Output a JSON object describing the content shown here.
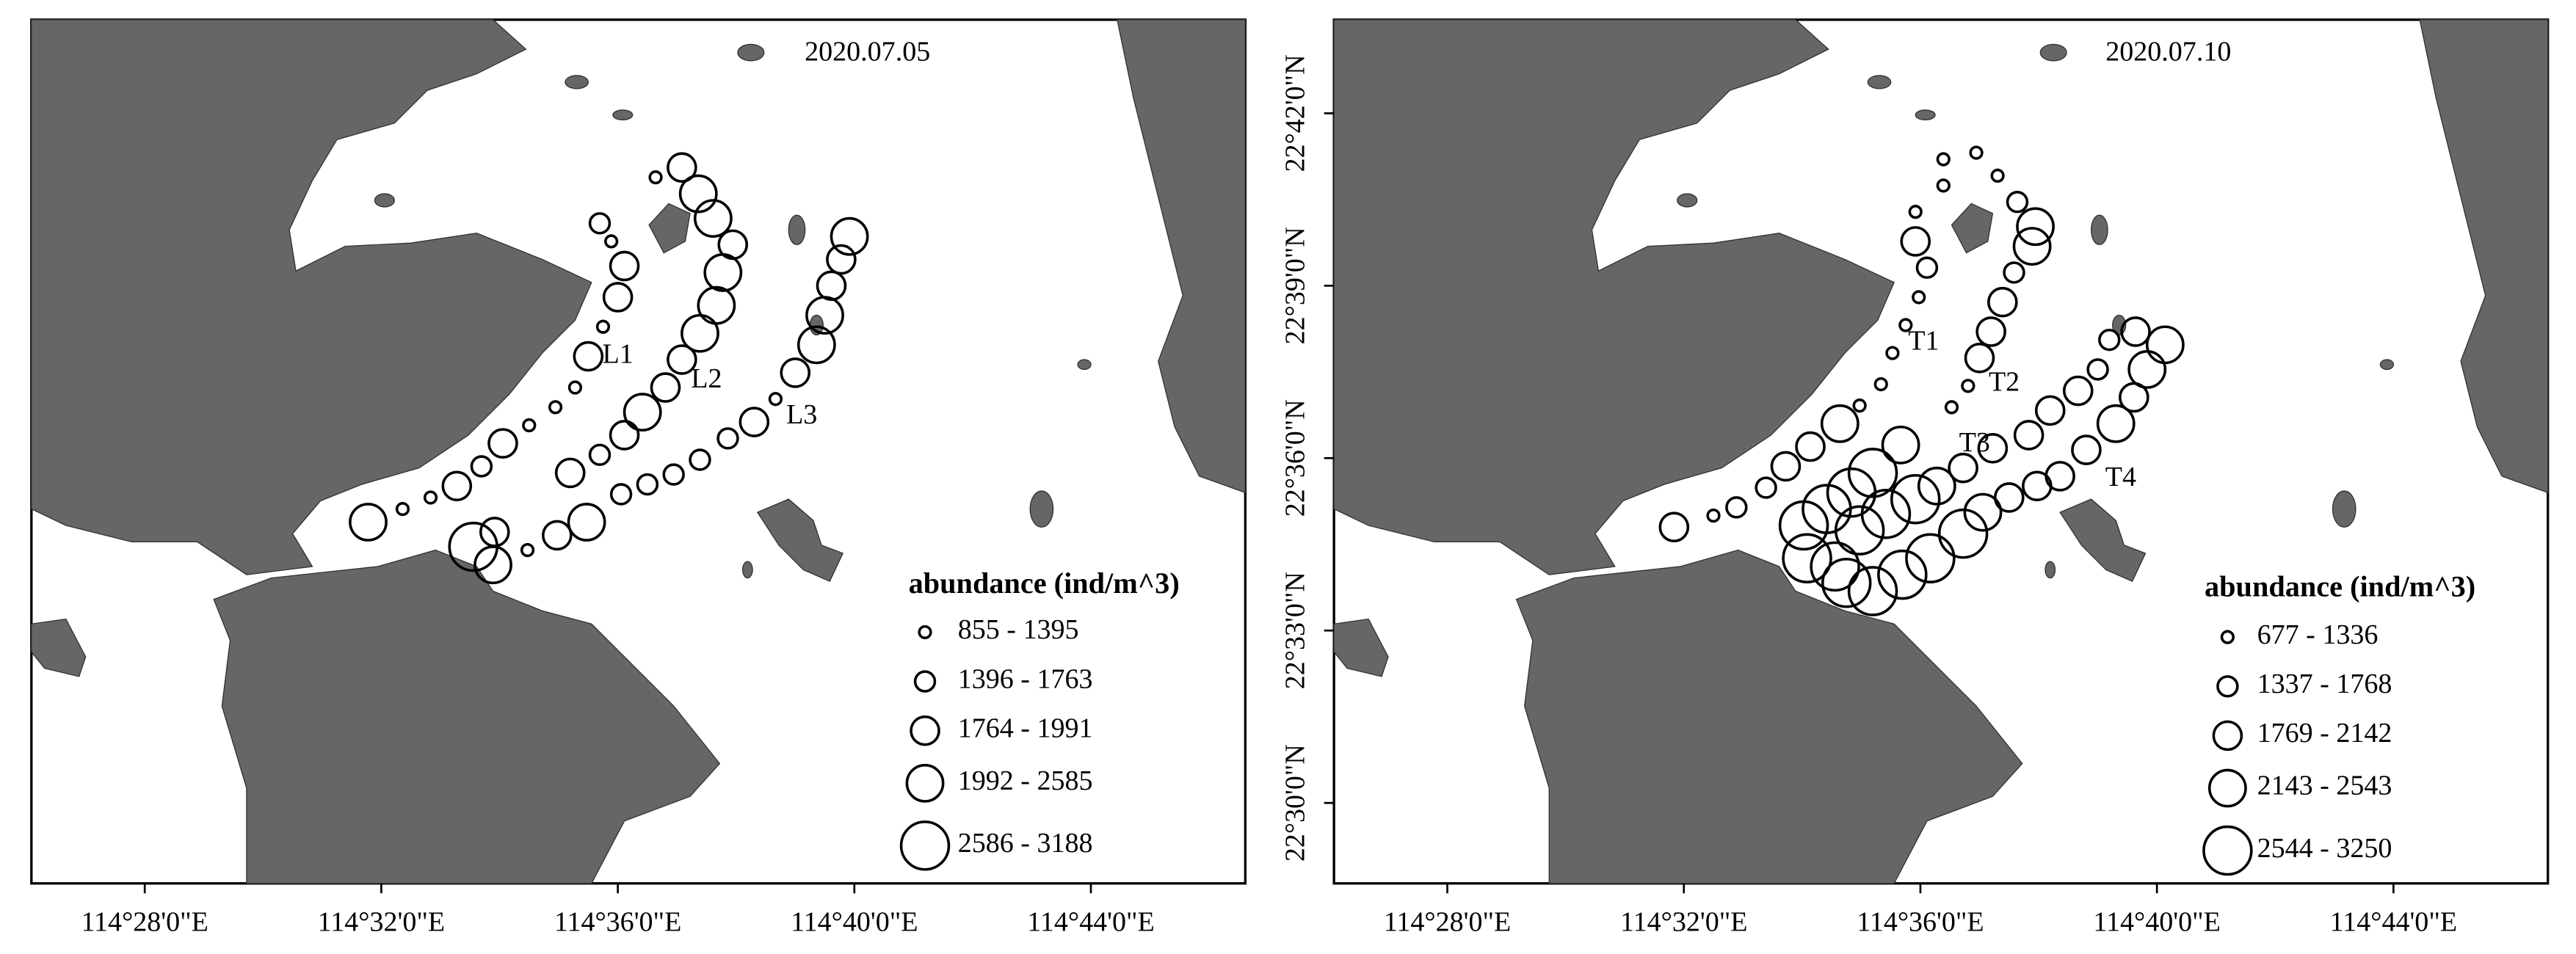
{
  "panels": [
    {
      "date": "2020.07.05",
      "transects": [
        "L1",
        "L2",
        "L3"
      ],
      "legend": {
        "title": "abundance (ind/m^3)",
        "classes": [
          "855 - 1395",
          "1396 - 1763",
          "1764 - 1991",
          "1992 - 2585",
          "2586 - 3188"
        ]
      }
    },
    {
      "date": "2020.07.10",
      "transects": [
        "T1",
        "T2",
        "T3",
        "T4"
      ],
      "legend": {
        "title": "abundance (ind/m^3)",
        "classes": [
          "677 - 1336",
          "1337 - 1768",
          "1769 - 2142",
          "2143 - 2543",
          "2544 - 3250"
        ]
      }
    }
  ],
  "latitude_labels": [
    "22°42'0\"N",
    "22°39'0\"N",
    "22°36'0\"N",
    "22°33'0\"N",
    "22°30'0\"N"
  ],
  "longitude_labels": [
    "114°28'0\"E",
    "114°32'0\"E",
    "114°36'0\"E",
    "114°40'0\"E",
    "114°44'0\"E"
  ]
}
